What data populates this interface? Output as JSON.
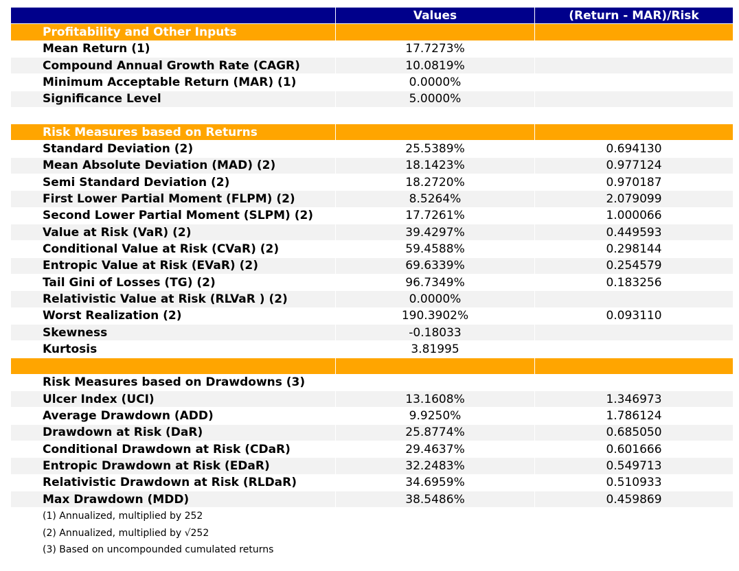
{
  "table": {
    "columns": [
      "Values",
      "(Return - MAR)/Risk"
    ],
    "sections": [
      {
        "title": "Profitability and Other Inputs",
        "rows": [
          [
            "Mean Return (1)",
            "17.7273%"
          ],
          [
            "Compound Annual Growth Rate (CAGR)",
            "10.0819%"
          ],
          [
            "Minimum Acceptable Return (MAR) (1)",
            "0.0000%"
          ],
          [
            "Significance Level",
            "5.0000%"
          ]
        ]
      },
      {
        "title": "Risk Measures based on Returns",
        "rows": [
          [
            "Standard Deviation (2)",
            "25.5389%",
            "0.694130"
          ],
          [
            "Mean Absolute Deviation (MAD) (2)",
            "18.1423%",
            "0.977124"
          ],
          [
            "Semi Standard Deviation (2)",
            "18.2720%",
            "0.970187"
          ],
          [
            "First Lower Partial Moment (FLPM) (2)",
            "8.5264%",
            "2.079099"
          ],
          [
            "Second Lower Partial Moment (SLPM) (2)",
            "17.7261%",
            "1.000066"
          ],
          [
            "Value at Risk (VaR) (2)",
            "39.4297%",
            "0.449593"
          ],
          [
            "Conditional Value at Risk (CVaR) (2)",
            "59.4588%",
            "0.298144"
          ],
          [
            "Entropic Value at Risk (EVaR) (2)",
            "69.6339%",
            "0.254579"
          ],
          [
            "Tail Gini of Losses (TG) (2)",
            "96.7349%",
            "0.183256"
          ],
          [
            "Relativistic Value at Risk (RLVaR ) (2)",
            "0.0000%"
          ],
          [
            "Worst Realization (2)",
            "190.3902%",
            "0.093110"
          ],
          [
            "Skewness",
            "-0.18033"
          ],
          [
            "Kurtosis",
            "3.81995"
          ]
        ]
      },
      {
        "title": null,
        "rows": [
          [
            "Risk Measures based on Drawdowns (3)"
          ],
          [
            "Ulcer Index (UCI)",
            "13.1608%",
            "1.346973"
          ],
          [
            "Average Drawdown (ADD)",
            "9.9250%",
            "1.786124"
          ],
          [
            "Drawdown at Risk (DaR)",
            "25.8774%",
            "0.685050"
          ],
          [
            "Conditional Drawdown at Risk (CDaR)",
            "29.4637%",
            "0.601666"
          ],
          [
            "Entropic Drawdown at Risk (EDaR)",
            "32.2483%",
            "0.549713"
          ],
          [
            "Relativistic Drawdown at Risk (RLDaR)",
            "34.6959%",
            "0.510933"
          ],
          [
            "Max Drawdown (MDD)",
            "38.5486%",
            "0.459869"
          ]
        ]
      }
    ],
    "footnotes": [
      "(1) Annualized, multiplied by 252",
      "(2) Annualized, multiplied by √252",
      "(3) Based on uncompounded cumulated returns"
    ]
  }
}
